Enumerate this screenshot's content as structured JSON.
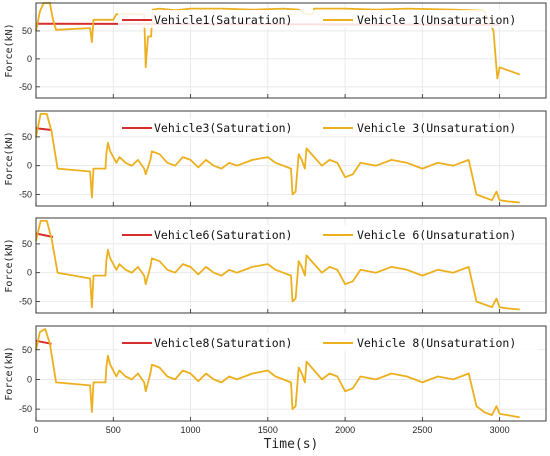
{
  "chart_data": [
    {
      "type": "line",
      "xlabel": "",
      "ylabel": "Force(kN)",
      "xlim": [
        0,
        3300
      ],
      "ylim": [
        -70,
        100
      ],
      "yticks": [
        50,
        0,
        -50
      ],
      "grid": true,
      "legend": "top-right",
      "series": [
        {
          "name": "Vehicle1(Saturation)",
          "color": "#d62d2d",
          "points": [
            [
              0,
              63
            ],
            [
              3000,
              61
            ]
          ]
        },
        {
          "name": "Vehicle 1(Unsaturation)",
          "color": "#ecb01f",
          "points": [
            [
              0,
              50
            ],
            [
              25,
              85
            ],
            [
              50,
              100
            ],
            [
              90,
              100
            ],
            [
              110,
              70
            ],
            [
              130,
              52
            ],
            [
              350,
              55
            ],
            [
              362,
              30
            ],
            [
              372,
              70
            ],
            [
              500,
              70
            ],
            [
              520,
              80
            ],
            [
              700,
              80
            ],
            [
              710,
              -15
            ],
            [
              725,
              40
            ],
            [
              745,
              40
            ],
            [
              755,
              88
            ],
            [
              800,
              90
            ],
            [
              900,
              87
            ],
            [
              1000,
              90
            ],
            [
              1200,
              90
            ],
            [
              1400,
              88
            ],
            [
              1600,
              90
            ],
            [
              1700,
              88
            ],
            [
              1750,
              80
            ],
            [
              1790,
              80
            ],
            [
              1800,
              90
            ],
            [
              2000,
              90
            ],
            [
              2200,
              88
            ],
            [
              2400,
              90
            ],
            [
              2700,
              88
            ],
            [
              2900,
              86
            ],
            [
              2960,
              50
            ],
            [
              2985,
              -35
            ],
            [
              3000,
              -15
            ],
            [
              3050,
              -20
            ],
            [
              3130,
              -28
            ]
          ]
        }
      ]
    },
    {
      "type": "line",
      "xlabel": "",
      "ylabel": "Force(kN)",
      "xlim": [
        0,
        3300
      ],
      "ylim": [
        -70,
        95
      ],
      "yticks": [
        50,
        0,
        -50
      ],
      "grid": true,
      "legend": "top-right",
      "series": [
        {
          "name": "Vehicle3(Saturation)",
          "color": "#d62d2d",
          "points": [
            [
              0,
              65
            ],
            [
              100,
              62
            ]
          ]
        },
        {
          "name": "Vehicle 3(Unsaturation)",
          "color": "#ecb01f",
          "points": [
            [
              0,
              50
            ],
            [
              30,
              90
            ],
            [
              70,
              90
            ],
            [
              100,
              60
            ],
            [
              140,
              -5
            ],
            [
              350,
              -10
            ],
            [
              362,
              -55
            ],
            [
              372,
              -5
            ],
            [
              450,
              -5
            ],
            [
              455,
              20
            ],
            [
              465,
              40
            ],
            [
              480,
              25
            ],
            [
              520,
              5
            ],
            [
              540,
              15
            ],
            [
              580,
              5
            ],
            [
              620,
              0
            ],
            [
              660,
              10
            ],
            [
              700,
              -5
            ],
            [
              710,
              -15
            ],
            [
              740,
              10
            ],
            [
              750,
              25
            ],
            [
              800,
              20
            ],
            [
              850,
              5
            ],
            [
              900,
              0
            ],
            [
              950,
              15
            ],
            [
              1000,
              10
            ],
            [
              1050,
              -3
            ],
            [
              1100,
              10
            ],
            [
              1150,
              0
            ],
            [
              1200,
              -5
            ],
            [
              1250,
              5
            ],
            [
              1300,
              0
            ],
            [
              1400,
              10
            ],
            [
              1500,
              15
            ],
            [
              1550,
              5
            ],
            [
              1600,
              0
            ],
            [
              1650,
              -5
            ],
            [
              1660,
              -50
            ],
            [
              1680,
              -45
            ],
            [
              1700,
              20
            ],
            [
              1720,
              10
            ],
            [
              1740,
              -5
            ],
            [
              1750,
              30
            ],
            [
              1800,
              15
            ],
            [
              1850,
              0
            ],
            [
              1900,
              10
            ],
            [
              1950,
              5
            ],
            [
              2000,
              -20
            ],
            [
              2050,
              -15
            ],
            [
              2100,
              5
            ],
            [
              2200,
              0
            ],
            [
              2300,
              10
            ],
            [
              2400,
              5
            ],
            [
              2500,
              -5
            ],
            [
              2600,
              5
            ],
            [
              2700,
              0
            ],
            [
              2800,
              10
            ],
            [
              2850,
              -50
            ],
            [
              2900,
              -55
            ],
            [
              2950,
              -60
            ],
            [
              2980,
              -45
            ],
            [
              3000,
              -60
            ],
            [
              3050,
              -62
            ],
            [
              3130,
              -64
            ]
          ]
        }
      ]
    },
    {
      "type": "line",
      "xlabel": "",
      "ylabel": "Force(kN)",
      "xlim": [
        0,
        3300
      ],
      "ylim": [
        -70,
        95
      ],
      "yticks": [
        50,
        0,
        -50
      ],
      "grid": true,
      "legend": "top-right",
      "series": [
        {
          "name": "Vehicle6(Saturation)",
          "color": "#d62d2d",
          "points": [
            [
              0,
              68
            ],
            [
              110,
              62
            ]
          ]
        },
        {
          "name": "Vehicle 6(Unsaturation)",
          "color": "#ecb01f",
          "points": [
            [
              0,
              55
            ],
            [
              30,
              90
            ],
            [
              70,
              90
            ],
            [
              100,
              60
            ],
            [
              140,
              0
            ],
            [
              350,
              -10
            ],
            [
              362,
              -60
            ],
            [
              372,
              -5
            ],
            [
              450,
              -5
            ],
            [
              455,
              20
            ],
            [
              465,
              40
            ],
            [
              480,
              25
            ],
            [
              520,
              5
            ],
            [
              540,
              15
            ],
            [
              580,
              5
            ],
            [
              620,
              0
            ],
            [
              660,
              10
            ],
            [
              700,
              -5
            ],
            [
              710,
              -20
            ],
            [
              740,
              10
            ],
            [
              750,
              25
            ],
            [
              800,
              20
            ],
            [
              850,
              5
            ],
            [
              900,
              0
            ],
            [
              950,
              15
            ],
            [
              1000,
              10
            ],
            [
              1050,
              -3
            ],
            [
              1100,
              10
            ],
            [
              1150,
              0
            ],
            [
              1200,
              -5
            ],
            [
              1250,
              5
            ],
            [
              1300,
              0
            ],
            [
              1400,
              10
            ],
            [
              1500,
              15
            ],
            [
              1550,
              5
            ],
            [
              1600,
              0
            ],
            [
              1650,
              -5
            ],
            [
              1660,
              -50
            ],
            [
              1680,
              -45
            ],
            [
              1700,
              20
            ],
            [
              1720,
              10
            ],
            [
              1740,
              -5
            ],
            [
              1750,
              30
            ],
            [
              1800,
              15
            ],
            [
              1850,
              0
            ],
            [
              1900,
              10
            ],
            [
              1950,
              5
            ],
            [
              2000,
              -20
            ],
            [
              2050,
              -15
            ],
            [
              2100,
              5
            ],
            [
              2200,
              0
            ],
            [
              2300,
              10
            ],
            [
              2400,
              5
            ],
            [
              2500,
              -5
            ],
            [
              2600,
              5
            ],
            [
              2700,
              0
            ],
            [
              2800,
              10
            ],
            [
              2850,
              -50
            ],
            [
              2900,
              -55
            ],
            [
              2950,
              -60
            ],
            [
              2980,
              -45
            ],
            [
              3000,
              -60
            ],
            [
              3050,
              -62
            ],
            [
              3130,
              -64
            ]
          ]
        }
      ]
    },
    {
      "type": "line",
      "xlabel": "Time(s)",
      "ylabel": "Force(kN)",
      "xlim": [
        0,
        3300
      ],
      "ylim": [
        -70,
        90
      ],
      "xticks": [
        0,
        500,
        1000,
        1500,
        2000,
        2500,
        3000
      ],
      "yticks": [
        50,
        0,
        -50
      ],
      "grid": true,
      "legend": "top-right",
      "series": [
        {
          "name": "Vehicle8(Saturation)",
          "color": "#d62d2d",
          "points": [
            [
              0,
              65
            ],
            [
              100,
              60
            ]
          ]
        },
        {
          "name": "Vehicle 8(Unsaturation)",
          "color": "#ecb01f",
          "points": [
            [
              0,
              50
            ],
            [
              25,
              80
            ],
            [
              60,
              85
            ],
            [
              90,
              60
            ],
            [
              130,
              -5
            ],
            [
              350,
              -10
            ],
            [
              362,
              -55
            ],
            [
              372,
              -5
            ],
            [
              450,
              -5
            ],
            [
              455,
              20
            ],
            [
              465,
              40
            ],
            [
              480,
              25
            ],
            [
              520,
              5
            ],
            [
              540,
              15
            ],
            [
              580,
              5
            ],
            [
              620,
              0
            ],
            [
              660,
              10
            ],
            [
              700,
              -5
            ],
            [
              710,
              -20
            ],
            [
              740,
              10
            ],
            [
              750,
              25
            ],
            [
              800,
              20
            ],
            [
              850,
              5
            ],
            [
              900,
              0
            ],
            [
              950,
              15
            ],
            [
              1000,
              10
            ],
            [
              1050,
              -3
            ],
            [
              1100,
              10
            ],
            [
              1150,
              0
            ],
            [
              1200,
              -5
            ],
            [
              1250,
              5
            ],
            [
              1300,
              0
            ],
            [
              1400,
              10
            ],
            [
              1500,
              15
            ],
            [
              1550,
              5
            ],
            [
              1600,
              0
            ],
            [
              1650,
              -5
            ],
            [
              1660,
              -50
            ],
            [
              1680,
              -45
            ],
            [
              1700,
              20
            ],
            [
              1720,
              10
            ],
            [
              1740,
              -5
            ],
            [
              1750,
              30
            ],
            [
              1800,
              15
            ],
            [
              1850,
              0
            ],
            [
              1900,
              10
            ],
            [
              1950,
              5
            ],
            [
              2000,
              -20
            ],
            [
              2050,
              -15
            ],
            [
              2100,
              5
            ],
            [
              2200,
              0
            ],
            [
              2300,
              10
            ],
            [
              2400,
              5
            ],
            [
              2500,
              -5
            ],
            [
              2600,
              5
            ],
            [
              2700,
              0
            ],
            [
              2800,
              10
            ],
            [
              2850,
              -45
            ],
            [
              2900,
              -55
            ],
            [
              2950,
              -60
            ],
            [
              2980,
              -45
            ],
            [
              3000,
              -58
            ],
            [
              3050,
              -60
            ],
            [
              3130,
              -64
            ]
          ]
        }
      ]
    }
  ]
}
